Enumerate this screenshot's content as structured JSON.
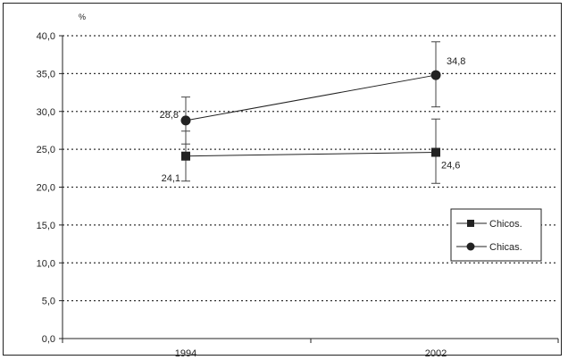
{
  "chart_data": {
    "type": "line",
    "x": [
      "1994",
      "2002"
    ],
    "y_unit_label": "%",
    "ylim": [
      0,
      40
    ],
    "yticks": [
      "0,0",
      "5,0",
      "10,0",
      "15,0",
      "20,0",
      "25,0",
      "30,0",
      "35,0",
      "40,0"
    ],
    "grid": "horizontal dotted",
    "legend_position": "right",
    "series": [
      {
        "name": "Chicos.",
        "marker": "square",
        "values": [
          24.1,
          24.6
        ],
        "labels": [
          "24,1",
          "24,6"
        ],
        "error_low": [
          20.8,
          20.5
        ],
        "error_high": [
          27.4,
          29.0
        ]
      },
      {
        "name": "Chicas.",
        "marker": "circle",
        "values": [
          28.8,
          34.8
        ],
        "labels": [
          "28,8",
          "34,8"
        ],
        "error_low": [
          25.7,
          30.6
        ],
        "error_high": [
          31.9,
          39.2
        ]
      }
    ],
    "colors": {
      "line": "#222222",
      "grid": "#333333",
      "frame": "#222222"
    }
  }
}
